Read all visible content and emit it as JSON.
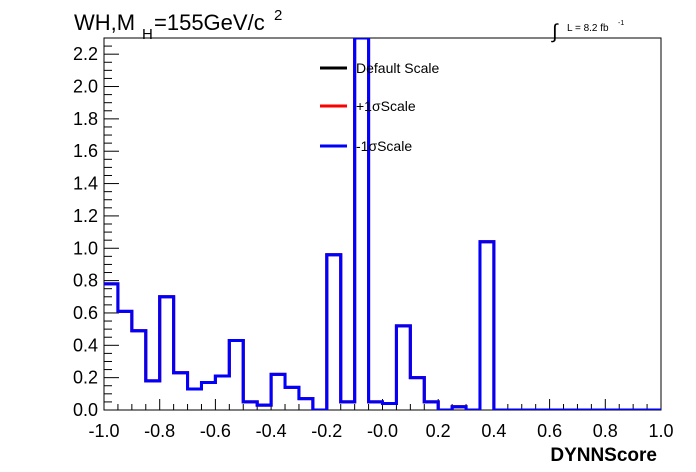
{
  "chart_data": {
    "type": "histogram",
    "title": {
      "main": "WH,M",
      "sub": "H",
      "rest": "=155GeV/c",
      "sup": "2"
    },
    "lumi": {
      "integral": "∫",
      "text": "L = 8.2 fb",
      "sup": "-1"
    },
    "xlabel": "DYNNScore",
    "ylabel": "",
    "xlim": [
      -1.0,
      1.0
    ],
    "ylim": [
      0,
      2.3
    ],
    "x_ticks": [
      "-1.0",
      "-0.8",
      "-0.6",
      "-0.4",
      "-0.2",
      "-0.0",
      "0.2",
      "0.4",
      "0.6",
      "0.8",
      "1.0"
    ],
    "y_ticks": [
      "0.0",
      "0.2",
      "0.4",
      "0.6",
      "0.8",
      "1.0",
      "1.2",
      "1.4",
      "1.6",
      "1.8",
      "2.0",
      "2.2"
    ],
    "grid": false,
    "legend_placement": "top-center",
    "bin_edges_x": [
      -1.0,
      0.4,
      1.0
    ],
    "bin_width": 0.05,
    "series": [
      {
        "name": "Default Scale",
        "color": "#000000",
        "values": [
          0.78,
          0.61,
          0.49,
          0.18,
          0.7,
          0.23,
          0.13,
          0.17,
          0.21,
          0.43,
          0.05,
          0.03,
          0.22,
          0.14,
          0.07,
          0.0,
          0.96,
          0.05,
          2.3,
          0.05,
          0.04,
          0.52,
          0.2,
          0.05,
          0.0,
          0.02,
          0.0,
          1.04,
          0.0,
          0.0,
          0.0,
          0.0,
          0.0,
          0.0,
          0.0,
          0.0,
          0.0,
          0.0,
          0.0,
          0.0
        ]
      },
      {
        "name": "+1σScale",
        "color": "#ff0000",
        "values": [
          0.78,
          0.61,
          0.49,
          0.18,
          0.7,
          0.23,
          0.13,
          0.17,
          0.21,
          0.43,
          0.05,
          0.03,
          0.22,
          0.14,
          0.07,
          0.0,
          0.96,
          0.05,
          2.3,
          0.05,
          0.04,
          0.52,
          0.2,
          0.05,
          0.0,
          0.02,
          0.0,
          1.04,
          0.0,
          0.0,
          0.0,
          0.0,
          0.0,
          0.0,
          0.0,
          0.0,
          0.0,
          0.0,
          0.0,
          0.0
        ]
      },
      {
        "name": "-1σScale",
        "color": "#0000ff",
        "values": [
          0.78,
          0.61,
          0.49,
          0.18,
          0.7,
          0.23,
          0.13,
          0.17,
          0.21,
          0.43,
          0.05,
          0.03,
          0.22,
          0.14,
          0.07,
          0.0,
          0.96,
          0.05,
          2.3,
          0.05,
          0.04,
          0.52,
          0.2,
          0.05,
          0.0,
          0.02,
          0.0,
          1.04,
          0.0,
          0.0,
          0.0,
          0.0,
          0.0,
          0.0,
          0.0,
          0.0,
          0.0,
          0.0,
          0.0,
          0.0
        ]
      }
    ]
  }
}
